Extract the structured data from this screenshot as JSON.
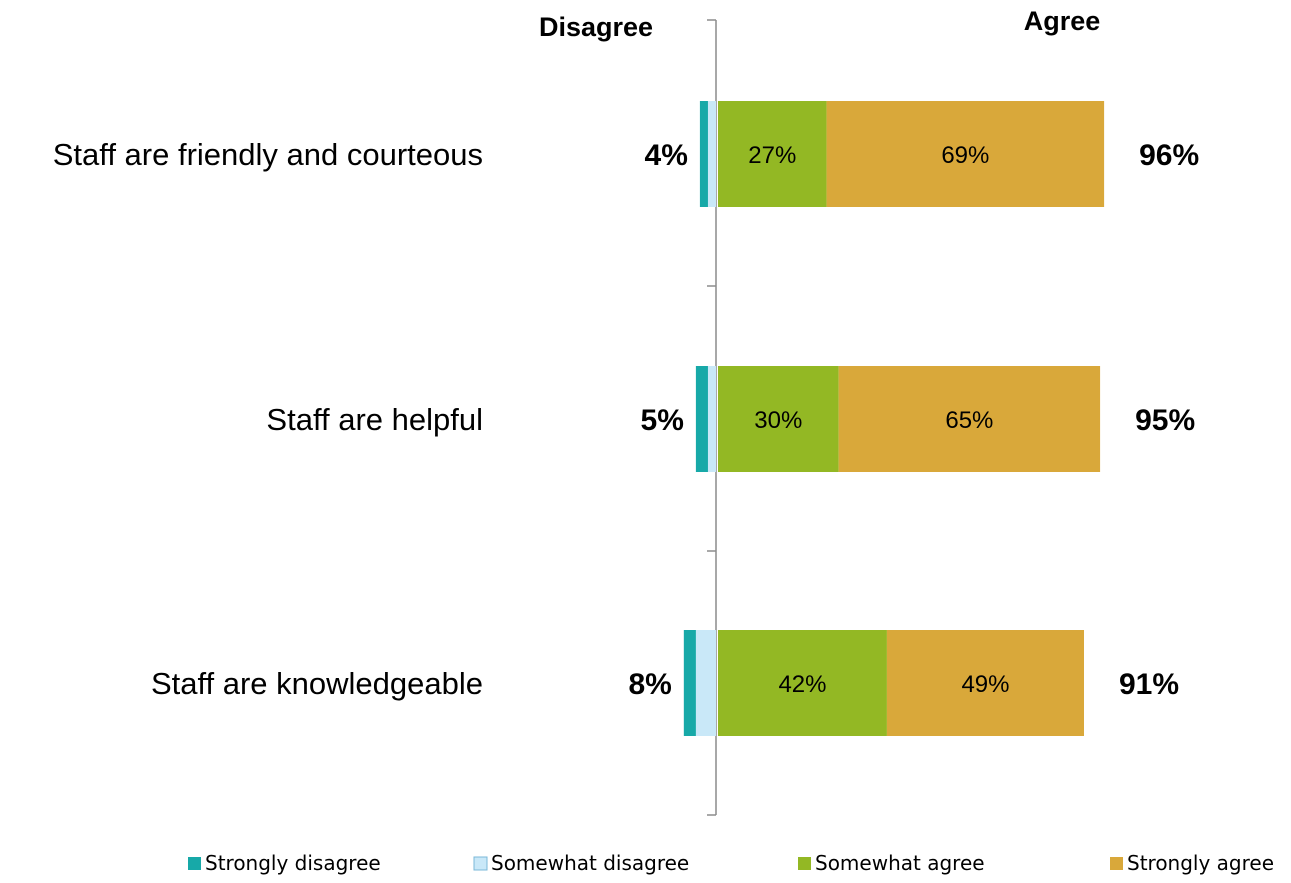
{
  "chart_data": {
    "type": "bar",
    "orientation": "horizontal",
    "stacked": true,
    "diverging": true,
    "headers": {
      "left": "Disagree",
      "right": "Agree"
    },
    "categories": [
      "Staff are friendly and courteous",
      "Staff are helpful",
      "Staff are knowledgeable"
    ],
    "series": [
      {
        "name": "Strongly disagree",
        "color": "#17A9A8",
        "side": "disagree",
        "values": [
          2,
          3,
          3
        ]
      },
      {
        "name": "Somewhat disagree",
        "color": "#C9E8F8",
        "side": "disagree",
        "values": [
          2,
          2,
          5
        ]
      },
      {
        "name": "Somewhat agree",
        "color": "#93B824",
        "side": "agree",
        "values": [
          27,
          30,
          42
        ]
      },
      {
        "name": "Strongly agree",
        "color": "#D9A83A",
        "side": "agree",
        "values": [
          69,
          65,
          49
        ]
      }
    ],
    "segment_labels": {
      "Somewhat agree": [
        "27%",
        "30%",
        "42%"
      ],
      "Strongly agree": [
        "69%",
        "65%",
        "49%"
      ]
    },
    "totals": {
      "disagree": [
        "4%",
        "5%",
        "8%"
      ],
      "agree": [
        "96%",
        "95%",
        "91%"
      ]
    },
    "legend": {
      "position": "bottom",
      "items": [
        "Strongly disagree",
        "Somewhat disagree",
        "Somewhat agree",
        "Strongly agree"
      ]
    },
    "grid": false
  }
}
